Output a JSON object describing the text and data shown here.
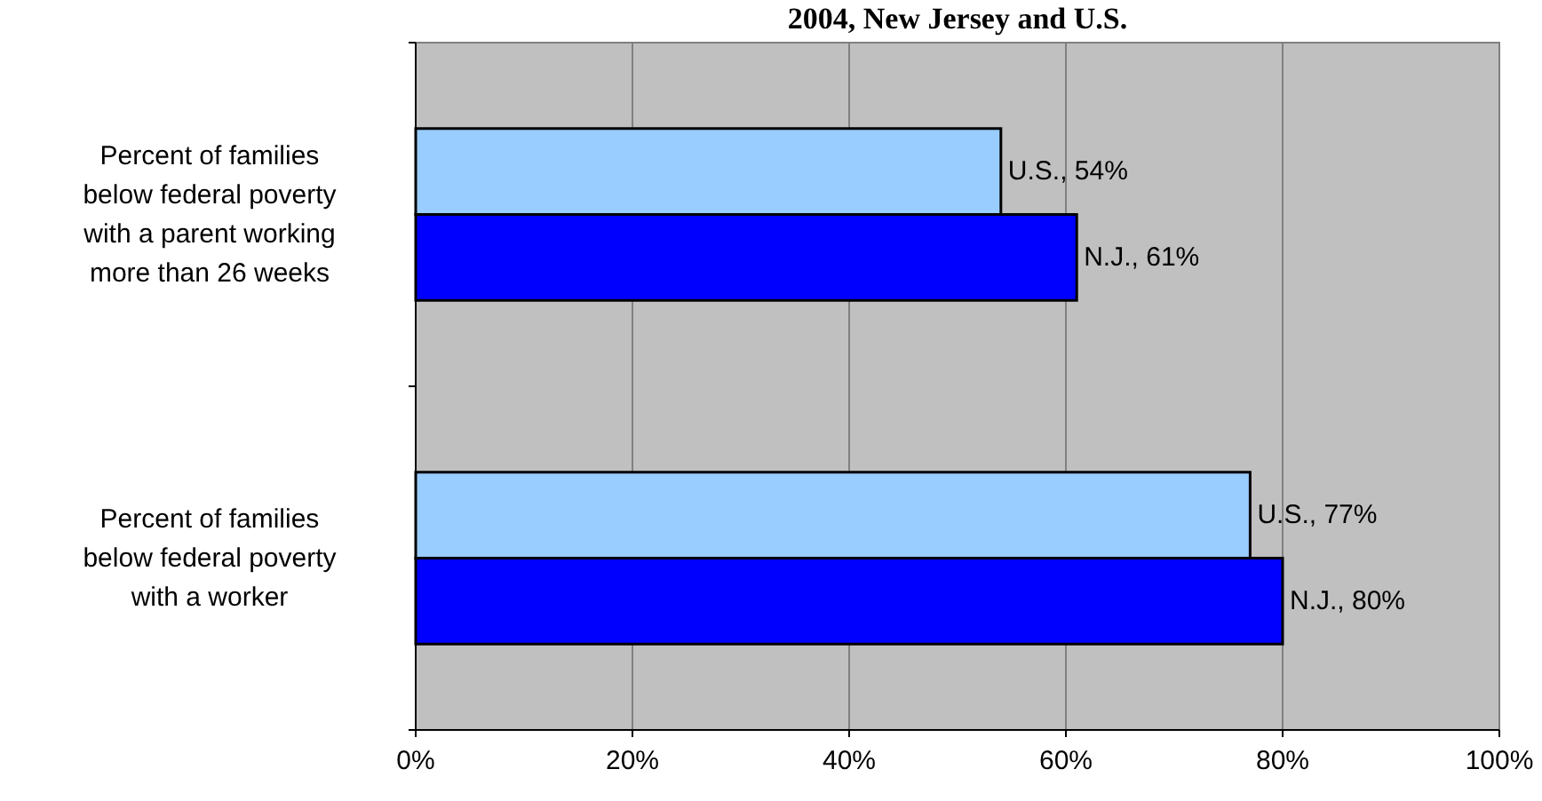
{
  "chart_data": {
    "type": "bar",
    "orientation": "horizontal",
    "title": "2004, New Jersey and U.S.",
    "categories": [
      "Percent of families below federal poverty with a parent working more than 26 weeks",
      "Percent of families below federal poverty with a worker"
    ],
    "series": [
      {
        "name": "U.S.",
        "color": "#99ccff",
        "values": [
          54,
          77
        ],
        "value_labels": [
          ", 54%",
          ", 77%"
        ]
      },
      {
        "name": "N.J.",
        "color": "#0000ff",
        "values": [
          61,
          80
        ],
        "value_labels": [
          ", 61%",
          ", 80%"
        ]
      }
    ],
    "xlim": [
      0,
      100
    ],
    "xticks": [
      {
        "value": 0,
        "label": "0%"
      },
      {
        "value": 20,
        "label": "20%"
      },
      {
        "value": 40,
        "label": "40%"
      },
      {
        "value": 60,
        "label": "60%"
      },
      {
        "value": 80,
        "label": "80%"
      },
      {
        "value": 100,
        "label": "100%"
      }
    ],
    "grid": "x"
  }
}
